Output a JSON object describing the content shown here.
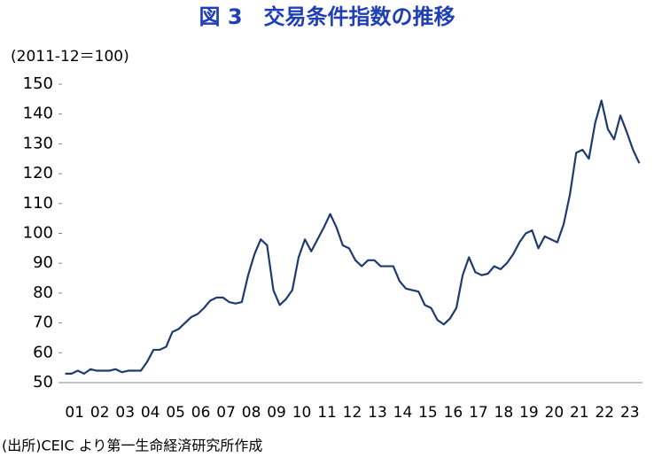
{
  "chart_data": {
    "type": "line",
    "title": "図 3　交易条件指数の推移",
    "subtitle": "(2011-12＝100)",
    "note": "(出所)CEIC より第一生命経済研究所作成",
    "categories": [
      "01",
      null,
      null,
      null,
      "02",
      null,
      null,
      null,
      "03",
      null,
      null,
      null,
      "04",
      null,
      null,
      null,
      "05",
      null,
      null,
      null,
      "06",
      null,
      null,
      null,
      "07",
      null,
      null,
      null,
      "08",
      null,
      null,
      null,
      "09",
      null,
      null,
      null,
      "10",
      null,
      null,
      null,
      "11",
      null,
      null,
      null,
      "12",
      null,
      null,
      null,
      "13",
      null,
      null,
      null,
      "14",
      null,
      null,
      null,
      "15",
      null,
      null,
      null,
      "16",
      null,
      null,
      null,
      "17",
      null,
      null,
      null,
      "18",
      null,
      null,
      null,
      "19",
      null,
      null,
      null,
      "20",
      null,
      null,
      null,
      "21",
      null,
      null,
      null,
      "22",
      null,
      null,
      null,
      "23",
      null,
      null,
      null
    ],
    "series": [
      {
        "name": "交易条件指数",
        "color": "#1f3a6e",
        "values": [
          53,
          53,
          54,
          53,
          54.5,
          54,
          54,
          54,
          54.5,
          53.5,
          54,
          54,
          54,
          57,
          61,
          61,
          62,
          67,
          68,
          70,
          72,
          73,
          75,
          77.5,
          78.5,
          78.5,
          77,
          76.5,
          77,
          86,
          93,
          98,
          96,
          81,
          76,
          78,
          81,
          92,
          98,
          94,
          98,
          102,
          106.5,
          102,
          96,
          95,
          91,
          89,
          91,
          91,
          89,
          89,
          89,
          84,
          81.5,
          81,
          80.5,
          76,
          75,
          71,
          69.5,
          71.5,
          75,
          86,
          92,
          87,
          86,
          86.5,
          89,
          88,
          90,
          93,
          97,
          100,
          101,
          95,
          99,
          98,
          97,
          103,
          113,
          127,
          128,
          125,
          137,
          144.5,
          135,
          131.5,
          139.5,
          134,
          128,
          123.5
        ]
      }
    ],
    "ylim": [
      50,
      150
    ],
    "yticks": [
      50,
      60,
      70,
      80,
      90,
      100,
      110,
      120,
      130,
      140,
      150
    ],
    "grid": false
  }
}
